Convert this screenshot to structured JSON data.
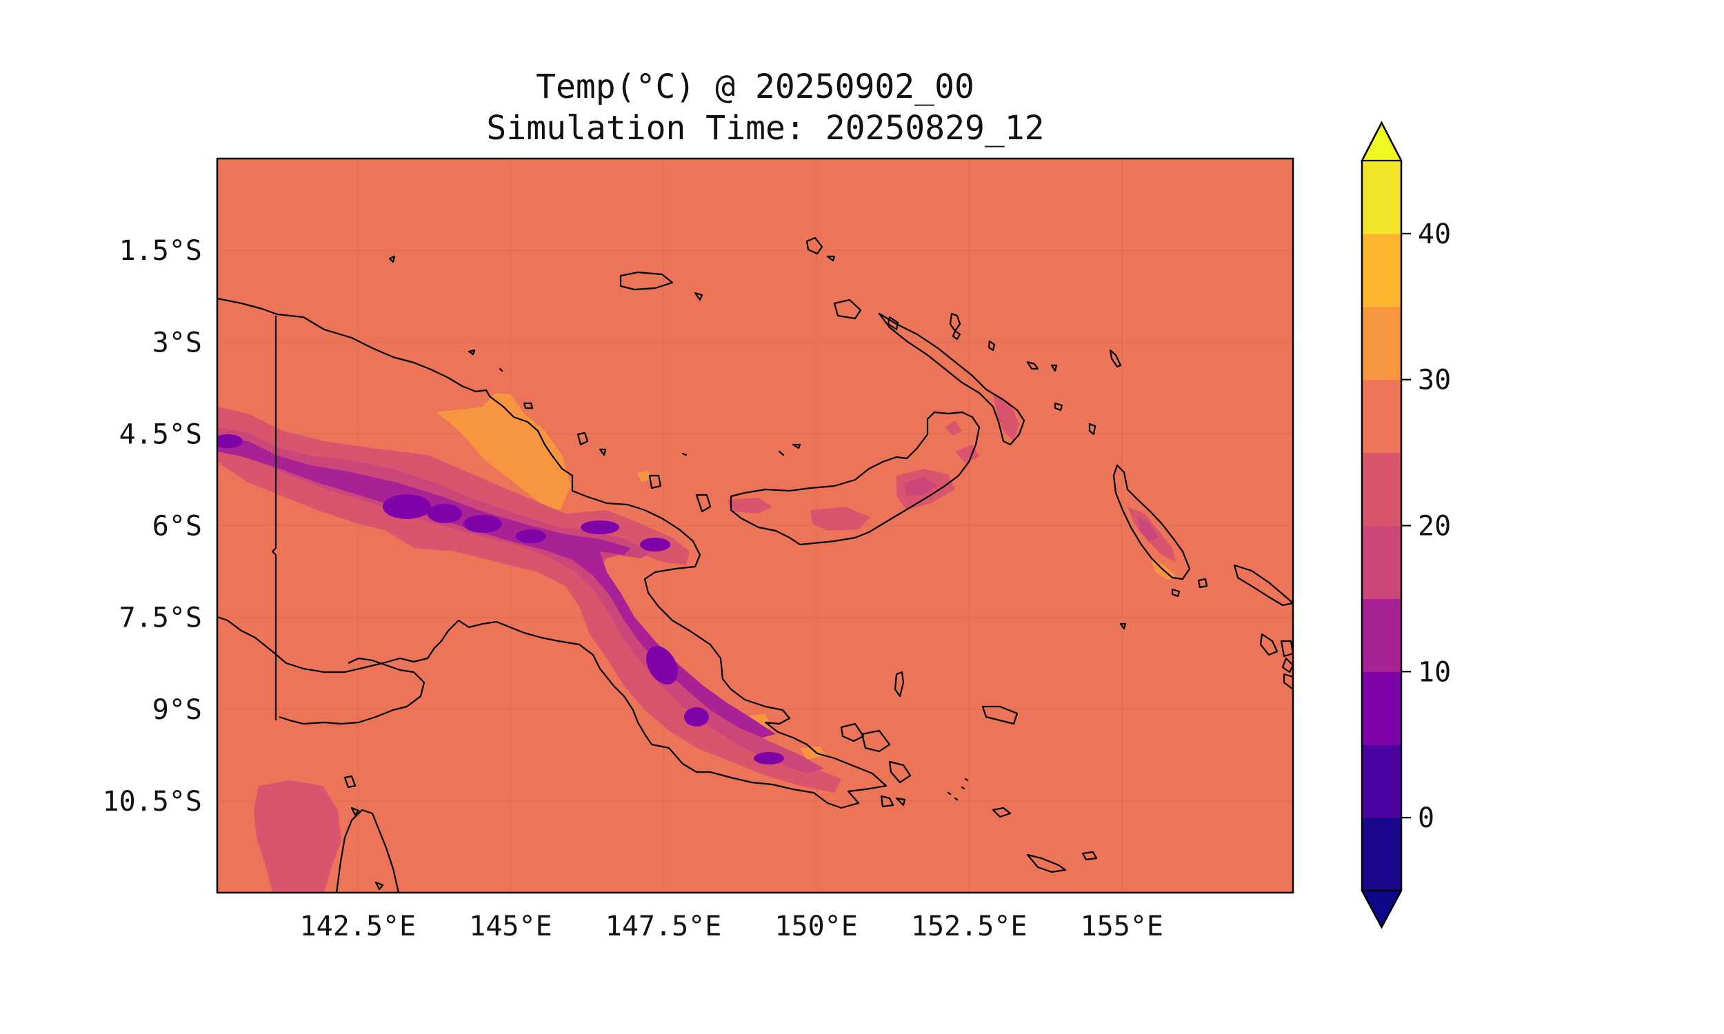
{
  "chart_data": {
    "type": "heatmap",
    "title": "Temp(°C) @ 20250902_00",
    "subtitle": "Simulation Time: 20250829_12",
    "xlabel": "",
    "ylabel": "",
    "x_range": [
      140.2,
      157.8
    ],
    "y_range": [
      -12.0,
      -0.0
    ],
    "x_ticks": [
      {
        "value": 142.5,
        "label": "142.5°E"
      },
      {
        "value": 145.0,
        "label": "145°E"
      },
      {
        "value": 147.5,
        "label": "147.5°E"
      },
      {
        "value": 150.0,
        "label": "150°E"
      },
      {
        "value": 152.5,
        "label": "152.5°E"
      },
      {
        "value": 155.0,
        "label": "155°E"
      }
    ],
    "y_ticks": [
      {
        "value": -1.5,
        "label": "1.5°S"
      },
      {
        "value": -3.0,
        "label": "3°S"
      },
      {
        "value": -4.5,
        "label": "4.5°S"
      },
      {
        "value": -6.0,
        "label": "6°S"
      },
      {
        "value": -7.5,
        "label": "7.5°S"
      },
      {
        "value": -9.0,
        "label": "9°S"
      },
      {
        "value": -10.5,
        "label": "10.5°S"
      }
    ],
    "grid": true,
    "background_value_range": [
      25,
      30
    ],
    "colorbar": {
      "orientation": "vertical",
      "placement": "right",
      "extend": "both",
      "levels": [
        -5,
        0,
        5,
        10,
        15,
        20,
        25,
        30,
        35,
        40,
        45
      ],
      "colors": [
        "#1a078c",
        "#4c02a1",
        "#7e03a8",
        "#a82296",
        "#cb4679",
        "#d9556e",
        "#ec7458",
        "#f89540",
        "#fdb42f",
        "#f2e42a"
      ],
      "under_color": "#0d0887",
      "over_color": "#f0f921",
      "tick_values": [
        0,
        10,
        20,
        30,
        40
      ],
      "tick_labels": [
        "0",
        "10",
        "20",
        "30",
        "40"
      ]
    },
    "land_outline_color": "#000000"
  }
}
